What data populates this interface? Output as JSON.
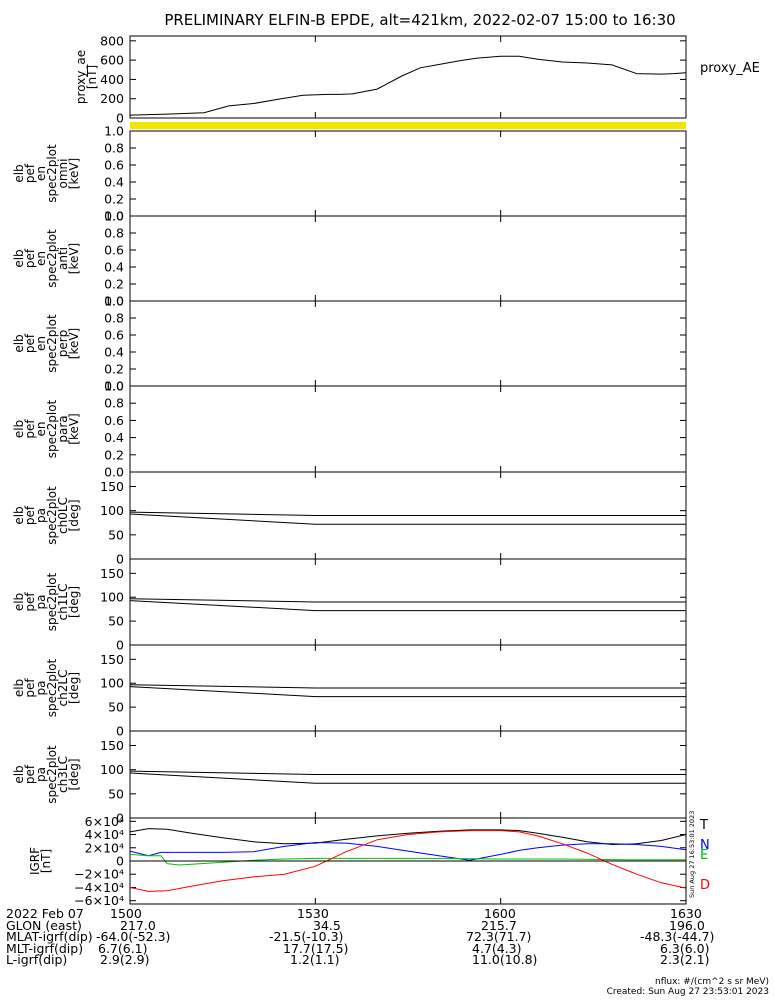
{
  "title": "PRELIMINARY ELFIN-B EPDE, alt=421km, 2022-02-07 15:00 to 16:30",
  "x_ticks": [
    "1500",
    "1530",
    "1600",
    "1630"
  ],
  "x_tick_minutes": [
    0,
    30,
    60,
    90
  ],
  "chart_data": [
    {
      "type": "line",
      "ylabel_lines": [
        "proxy_ae",
        "[nT]"
      ],
      "legend": "proxy_AE",
      "ylim": [
        0,
        850
      ],
      "yticks": [
        "0",
        "200",
        "400",
        "600",
        "800"
      ],
      "ytick_values": [
        0,
        200,
        400,
        600,
        800
      ],
      "series": [
        {
          "color": "#000000",
          "x": [
            0,
            6,
            12,
            16,
            20,
            24,
            28,
            32,
            34,
            36,
            40,
            44,
            47,
            50,
            53,
            56,
            60,
            63,
            66,
            70,
            74,
            78,
            82,
            86,
            88,
            90
          ],
          "y": [
            30,
            40,
            55,
            125,
            150,
            195,
            235,
            245,
            245,
            250,
            300,
            435,
            520,
            555,
            590,
            620,
            640,
            640,
            610,
            580,
            570,
            550,
            460,
            455,
            460,
            470
          ]
        }
      ]
    },
    {
      "type": "heatmap",
      "ylabel_lines": [
        "elb",
        "pef",
        "en",
        "spec2plot",
        "omni",
        "[keV]"
      ],
      "ylim": [
        0,
        1
      ],
      "yticks": [
        "0.0",
        "0.2",
        "0.4",
        "0.6",
        "0.8",
        "1.0"
      ],
      "ytick_values": [
        0,
        0.2,
        0.4,
        0.6,
        0.8,
        1.0
      ],
      "series": []
    },
    {
      "type": "heatmap",
      "ylabel_lines": [
        "elb",
        "pef",
        "en",
        "spec2plot",
        "anti",
        "[keV]"
      ],
      "ylim": [
        0,
        1
      ],
      "yticks": [
        "0.0",
        "0.2",
        "0.4",
        "0.6",
        "0.8",
        "1.0"
      ],
      "ytick_values": [
        0,
        0.2,
        0.4,
        0.6,
        0.8,
        1.0
      ],
      "series": []
    },
    {
      "type": "heatmap",
      "ylabel_lines": [
        "elb",
        "pef",
        "en",
        "spec2plot",
        "perp",
        "[keV]"
      ],
      "ylim": [
        0,
        1
      ],
      "yticks": [
        "0.0",
        "0.2",
        "0.4",
        "0.6",
        "0.8",
        "1.0"
      ],
      "ytick_values": [
        0,
        0.2,
        0.4,
        0.6,
        0.8,
        1.0
      ],
      "series": []
    },
    {
      "type": "heatmap",
      "ylabel_lines": [
        "elb",
        "pef",
        "en",
        "spec2plot",
        "para",
        "[keV]"
      ],
      "ylim": [
        0,
        1
      ],
      "yticks": [
        "0.0",
        "0.2",
        "0.4",
        "0.6",
        "0.8",
        "1.0"
      ],
      "ytick_values": [
        0,
        0.2,
        0.4,
        0.6,
        0.8,
        1.0
      ],
      "series": []
    },
    {
      "type": "line",
      "ylabel_lines": [
        "elb",
        "pef",
        "pa",
        "spec2plot",
        "ch0LC",
        "[deg]"
      ],
      "ylim": [
        0,
        180
      ],
      "yticks": [
        "0",
        "50",
        "100",
        "150"
      ],
      "ytick_values": [
        0,
        50,
        100,
        150
      ],
      "series": [
        {
          "color": "#000000",
          "x": [
            0,
            30,
            90
          ],
          "y": [
            97,
            90,
            90
          ]
        },
        {
          "color": "#000000",
          "x": [
            0,
            30,
            90
          ],
          "y": [
            93,
            72,
            72
          ]
        }
      ]
    },
    {
      "type": "line",
      "ylabel_lines": [
        "elb",
        "pef",
        "pa",
        "spec2plot",
        "ch1LC",
        "[deg]"
      ],
      "ylim": [
        0,
        180
      ],
      "yticks": [
        "0",
        "50",
        "100",
        "150"
      ],
      "ytick_values": [
        0,
        50,
        100,
        150
      ],
      "series": [
        {
          "color": "#000000",
          "x": [
            0,
            30,
            90
          ],
          "y": [
            97,
            90,
            90
          ]
        },
        {
          "color": "#000000",
          "x": [
            0,
            30,
            90
          ],
          "y": [
            93,
            72,
            72
          ]
        }
      ]
    },
    {
      "type": "line",
      "ylabel_lines": [
        "elb",
        "pef",
        "pa",
        "spec2plot",
        "ch2LC",
        "[deg]"
      ],
      "ylim": [
        0,
        180
      ],
      "yticks": [
        "0",
        "50",
        "100",
        "150"
      ],
      "ytick_values": [
        0,
        50,
        100,
        150
      ],
      "series": [
        {
          "color": "#000000",
          "x": [
            0,
            30,
            90
          ],
          "y": [
            97,
            90,
            90
          ]
        },
        {
          "color": "#000000",
          "x": [
            0,
            30,
            90
          ],
          "y": [
            93,
            72,
            72
          ]
        }
      ]
    },
    {
      "type": "line",
      "ylabel_lines": [
        "elb",
        "pef",
        "pa",
        "spec2plot",
        "ch3LC",
        "[deg]"
      ],
      "ylim": [
        0,
        180
      ],
      "yticks": [
        "0",
        "50",
        "100",
        "150"
      ],
      "ytick_values": [
        0,
        50,
        100,
        150
      ],
      "series": [
        {
          "color": "#000000",
          "x": [
            0,
            30,
            90
          ],
          "y": [
            97,
            90,
            90
          ]
        },
        {
          "color": "#000000",
          "x": [
            0,
            30,
            90
          ],
          "y": [
            93,
            72,
            72
          ]
        }
      ]
    },
    {
      "type": "line",
      "ylabel_lines": [
        "IGRF",
        "[nT]"
      ],
      "ylim": [
        -65000,
        65000
      ],
      "yticks": [
        "6×10⁴",
        "4×10⁴",
        "2×10⁴",
        "0",
        "−2×10⁴",
        "−4×10⁴",
        "−6×10⁴"
      ],
      "ytick_values": [
        60000,
        40000,
        20000,
        0,
        -20000,
        -40000,
        -60000
      ],
      "legend_items": [
        {
          "label": "T",
          "color": "#000000"
        },
        {
          "label": "N",
          "color": "#0000ff"
        },
        {
          "label": "E",
          "color": "#00c000"
        },
        {
          "label": "D",
          "color": "#ff0000"
        }
      ],
      "series": [
        {
          "name": "T",
          "color": "#000000",
          "x": [
            0,
            3,
            6,
            10,
            15,
            20,
            25,
            30,
            35,
            40,
            45,
            50,
            55,
            60,
            63,
            66,
            70,
            74,
            78,
            82,
            86,
            90
          ],
          "y": [
            44000,
            49000,
            48000,
            42000,
            35000,
            29000,
            26000,
            27000,
            33000,
            38000,
            42000,
            45000,
            47000,
            47000,
            46000,
            42000,
            36000,
            29000,
            25000,
            26000,
            31000,
            40000
          ]
        },
        {
          "name": "N",
          "color": "#0000ff",
          "x": [
            0,
            3,
            5,
            10,
            15,
            20,
            25,
            30,
            35,
            40,
            45,
            50,
            55,
            60,
            63,
            66,
            70,
            74,
            78,
            82,
            86,
            90
          ],
          "y": [
            15000,
            8000,
            13000,
            13000,
            13000,
            14000,
            22000,
            28000,
            27000,
            22000,
            15000,
            8000,
            1000,
            10000,
            16000,
            20000,
            24000,
            26000,
            26000,
            25000,
            22000,
            17000
          ]
        },
        {
          "name": "E",
          "color": "#00c000",
          "x": [
            0,
            3,
            5,
            6,
            8,
            10,
            15,
            20,
            25,
            30,
            40,
            50,
            60,
            70,
            80,
            90
          ],
          "y": [
            10000,
            8000,
            8000,
            -4000,
            -6000,
            -5000,
            -2000,
            1000,
            3000,
            4000,
            4000,
            4000,
            3000,
            3000,
            2000,
            2000
          ]
        },
        {
          "name": "D",
          "color": "#ff0000",
          "x": [
            0,
            3,
            6,
            10,
            15,
            20,
            25,
            30,
            35,
            40,
            45,
            50,
            55,
            60,
            63,
            66,
            70,
            74,
            78,
            82,
            86,
            90
          ],
          "y": [
            -40000,
            -46000,
            -45000,
            -38000,
            -30000,
            -24000,
            -20000,
            -8000,
            14000,
            32000,
            40000,
            44000,
            46000,
            46000,
            44000,
            38000,
            26000,
            12000,
            -5000,
            -20000,
            -33000,
            -41000
          ]
        }
      ]
    }
  ],
  "rows": [
    {
      "label": "2022 Feb 07",
      "values": [
        "1500",
        "1530",
        "1600",
        "1630"
      ]
    },
    {
      "label": "GLON (east)",
      "values": [
        "217.0",
        "34.5",
        "215.7",
        "196.0"
      ]
    },
    {
      "label": "MLAT-igrf(dip)",
      "values": [
        "-64.0(-52.3)",
        "-21.5(-10.3)",
        "72.3(71.7)",
        "-48.3(-44.7)"
      ]
    },
    {
      "label": "MLT-igrf(dip)",
      "values": [
        "6.7(6.1)",
        "17.7(17.5)",
        "4.7(4.3)",
        "6.3(6.0)"
      ]
    },
    {
      "label": "L-igrf(dip)",
      "values": [
        "2.9(2.9)",
        "1.2(1.1)",
        "11.0(10.8)",
        "2.3(2.1)"
      ]
    }
  ],
  "footer_flux": "nflux: #/(cm^2 s sr MeV)",
  "footer_created": "Created: Sun Aug 27 23:53:01 2023",
  "side_stamp": "Sun Aug 27 16:53:01 2023",
  "colors": {
    "status_bar": "#f2e600",
    "axis": "#000000"
  }
}
